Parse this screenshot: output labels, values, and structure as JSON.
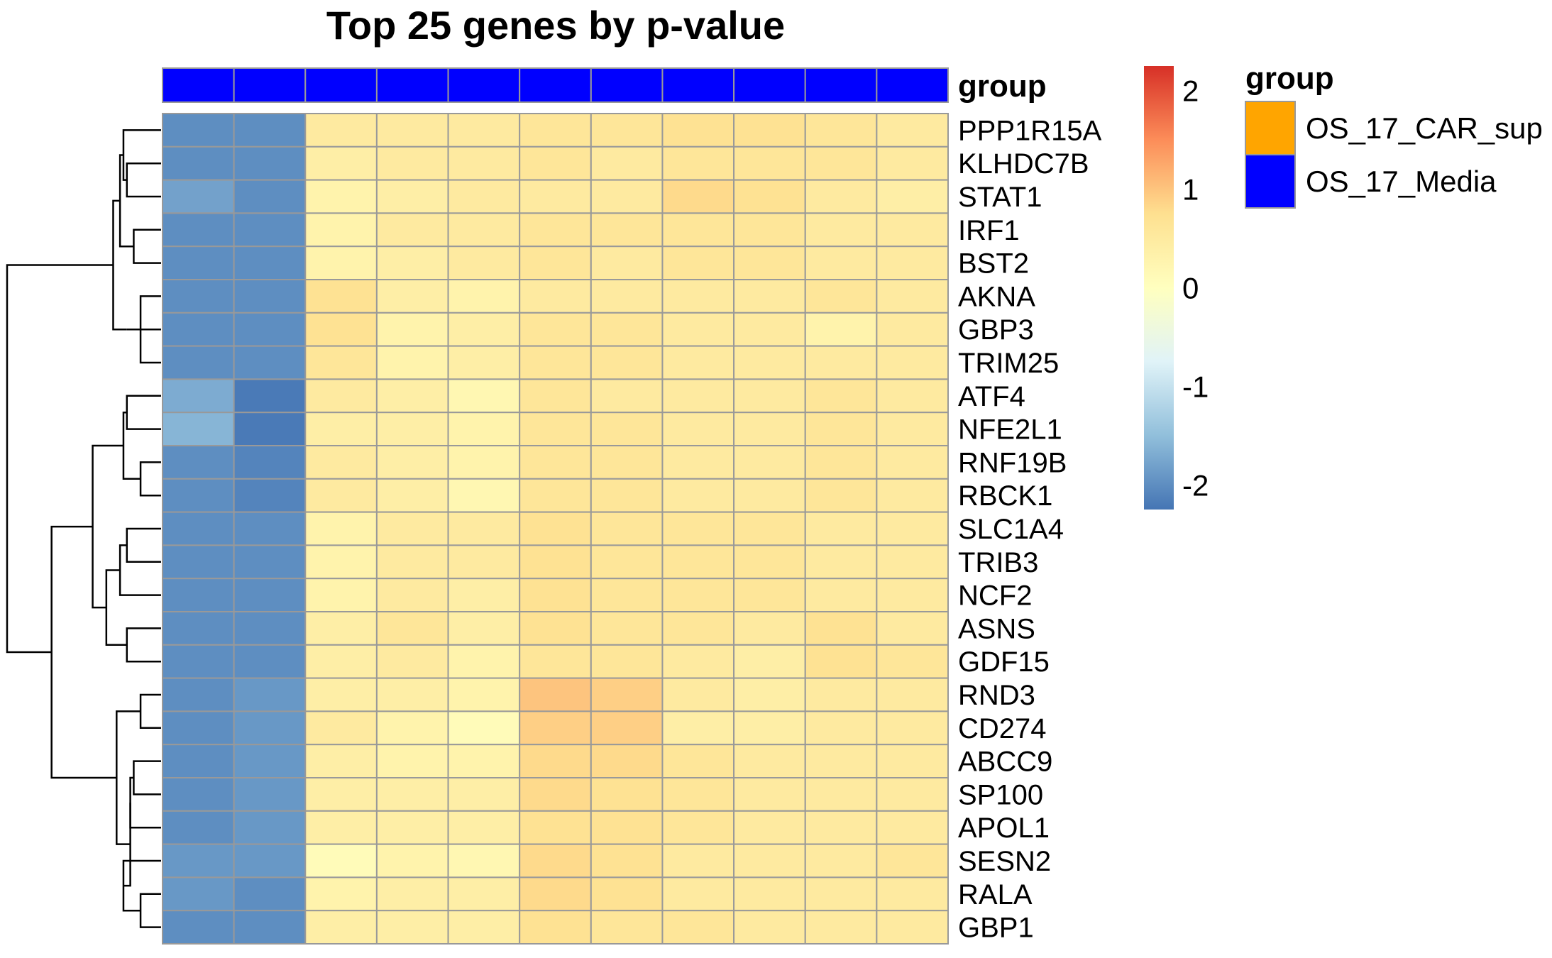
{
  "chart_data": {
    "type": "heatmap",
    "title": "Top 25 genes by p-value",
    "annotation_track_label": "group",
    "annotation_values": [
      "OS_17_Media",
      "OS_17_Media",
      "OS_17_Media",
      "OS_17_Media",
      "OS_17_Media",
      "OS_17_Media",
      "OS_17_Media",
      "OS_17_Media",
      "OS_17_Media",
      "OS_17_Media",
      "OS_17_Media"
    ],
    "annotation_colors": {
      "OS_17_CAR_sup": "#FFA500",
      "OS_17_Media": "#0000FF"
    },
    "rows": [
      "PPP1R15A",
      "KLHDC7B",
      "STAT1",
      "IRF1",
      "BST2",
      "AKNA",
      "GBP3",
      "TRIM25",
      "ATF4",
      "NFE2L1",
      "RNF19B",
      "RBCK1",
      "SLC1A4",
      "TRIB3",
      "NCF2",
      "ASNS",
      "GDF15",
      "RND3",
      "CD274",
      "ABCC9",
      "SP100",
      "APOL1",
      "SESN2",
      "RALA",
      "GBP1"
    ],
    "values": [
      [
        -2.0,
        -2.0,
        0.5,
        0.5,
        0.5,
        0.6,
        0.6,
        0.7,
        0.7,
        0.6,
        0.5
      ],
      [
        -2.0,
        -2.0,
        0.4,
        0.5,
        0.5,
        0.6,
        0.5,
        0.6,
        0.6,
        0.6,
        0.5
      ],
      [
        -1.8,
        -2.0,
        0.3,
        0.4,
        0.5,
        0.5,
        0.5,
        0.8,
        0.7,
        0.5,
        0.4
      ],
      [
        -2.0,
        -2.0,
        0.3,
        0.5,
        0.5,
        0.6,
        0.6,
        0.6,
        0.6,
        0.5,
        0.5
      ],
      [
        -2.0,
        -2.0,
        0.3,
        0.4,
        0.5,
        0.6,
        0.5,
        0.6,
        0.6,
        0.5,
        0.5
      ],
      [
        -2.0,
        -2.0,
        0.7,
        0.4,
        0.3,
        0.5,
        0.5,
        0.5,
        0.5,
        0.6,
        0.5
      ],
      [
        -2.0,
        -2.0,
        0.7,
        0.3,
        0.4,
        0.6,
        0.6,
        0.5,
        0.5,
        0.3,
        0.5
      ],
      [
        -2.0,
        -2.0,
        0.6,
        0.3,
        0.4,
        0.6,
        0.6,
        0.5,
        0.5,
        0.5,
        0.5
      ],
      [
        -1.7,
        -2.2,
        0.5,
        0.4,
        0.2,
        0.6,
        0.5,
        0.5,
        0.5,
        0.6,
        0.5
      ],
      [
        -1.6,
        -2.2,
        0.4,
        0.4,
        0.3,
        0.6,
        0.6,
        0.5,
        0.5,
        0.6,
        0.5
      ],
      [
        -2.0,
        -2.1,
        0.5,
        0.4,
        0.3,
        0.6,
        0.6,
        0.5,
        0.5,
        0.6,
        0.5
      ],
      [
        -2.0,
        -2.1,
        0.5,
        0.4,
        0.2,
        0.6,
        0.6,
        0.5,
        0.5,
        0.6,
        0.5
      ],
      [
        -2.0,
        -2.0,
        0.3,
        0.5,
        0.5,
        0.7,
        0.6,
        0.6,
        0.6,
        0.5,
        0.5
      ],
      [
        -2.0,
        -2.0,
        0.3,
        0.5,
        0.5,
        0.7,
        0.6,
        0.6,
        0.6,
        0.5,
        0.5
      ],
      [
        -2.0,
        -2.0,
        0.3,
        0.5,
        0.4,
        0.7,
        0.6,
        0.6,
        0.6,
        0.5,
        0.5
      ],
      [
        -2.0,
        -2.0,
        0.4,
        0.6,
        0.4,
        0.7,
        0.6,
        0.6,
        0.5,
        0.7,
        0.5
      ],
      [
        -2.0,
        -2.0,
        0.4,
        0.5,
        0.3,
        0.6,
        0.6,
        0.5,
        0.4,
        0.7,
        0.6
      ],
      [
        -2.0,
        -1.9,
        0.4,
        0.4,
        0.3,
        1.0,
        0.9,
        0.5,
        0.4,
        0.5,
        0.5
      ],
      [
        -2.0,
        -1.9,
        0.5,
        0.3,
        0.1,
        0.9,
        0.9,
        0.4,
        0.4,
        0.5,
        0.5
      ],
      [
        -2.0,
        -1.9,
        0.4,
        0.3,
        0.3,
        0.8,
        0.8,
        0.6,
        0.5,
        0.5,
        0.5
      ],
      [
        -2.0,
        -1.9,
        0.4,
        0.4,
        0.4,
        0.8,
        0.7,
        0.6,
        0.5,
        0.5,
        0.5
      ],
      [
        -2.0,
        -1.9,
        0.4,
        0.4,
        0.4,
        0.7,
        0.7,
        0.6,
        0.5,
        0.5,
        0.5
      ],
      [
        -1.9,
        -1.9,
        0.1,
        0.3,
        0.2,
        0.8,
        0.7,
        0.5,
        0.5,
        0.5,
        0.6
      ],
      [
        -1.9,
        -2.0,
        0.3,
        0.4,
        0.4,
        0.8,
        0.7,
        0.5,
        0.5,
        0.5,
        0.5
      ],
      [
        -2.0,
        -2.0,
        0.4,
        0.4,
        0.4,
        0.7,
        0.6,
        0.6,
        0.5,
        0.5,
        0.5
      ]
    ],
    "color_scale": {
      "min": -2.25,
      "max": 2.25,
      "stops": [
        "#4575B4",
        "#91BFDB",
        "#E0F3F8",
        "#FFFFBF",
        "#FEE090",
        "#FC8D59",
        "#D73027"
      ],
      "ticks": [
        -2,
        -1,
        0,
        1,
        2
      ],
      "tick_labels": [
        "-2",
        "-1",
        "0",
        "1",
        "2"
      ]
    },
    "row_dendrogram": {
      "merges": [
        [
          "IRF1",
          "BST2",
          0.4
        ],
        [
          "AKNA",
          "TRIM25",
          0.3
        ],
        [
          "ATF4",
          "NFE2L1",
          0.5
        ],
        [
          "RNF19B",
          "RBCK1",
          0.3
        ],
        [
          "SLC1A4",
          "TRIB3",
          0.5
        ],
        [
          "ASNS",
          "GDF15",
          0.5
        ],
        [
          "RND3",
          "CD274",
          0.3
        ],
        [
          "ABCC9",
          "SP100",
          0.4
        ],
        [
          "RALA",
          "GBP1",
          0.3
        ],
        [
          "AKNA",
          "GBP3",
          0.5
        ],
        [
          "KLHDC7B",
          "STAT1",
          0.5
        ],
        [
          "SLC1A4",
          "NCF2",
          0.6
        ],
        [
          "ABCC9",
          "APOL1",
          0.45
        ],
        [
          "PPP1R15A",
          "KLHDC7B",
          0.55
        ],
        [
          "SESN2",
          "RALA",
          0.55
        ],
        [
          "IRF1",
          "PPP1R15A",
          0.6
        ],
        [
          "ABCC9",
          "SESN2",
          0.45
        ],
        [
          "ATF4",
          "RNF19B",
          0.55
        ],
        [
          "SLC1A4",
          "ASNS",
          0.8
        ],
        [
          "RND3",
          "ABCC9",
          0.65
        ],
        [
          "IRF1",
          "AKNA",
          0.7
        ],
        [
          "ATF4",
          "SLC1A4",
          1.0
        ],
        [
          "ATF4",
          "RND3",
          1.6
        ],
        [
          "IRF1",
          "ATF4",
          2.25
        ]
      ]
    },
    "legend": {
      "title": "group",
      "entries": [
        {
          "label": "OS_17_CAR_sup",
          "color": "#FFA500"
        },
        {
          "label": "OS_17_Media",
          "color": "#0000FF"
        }
      ]
    }
  }
}
